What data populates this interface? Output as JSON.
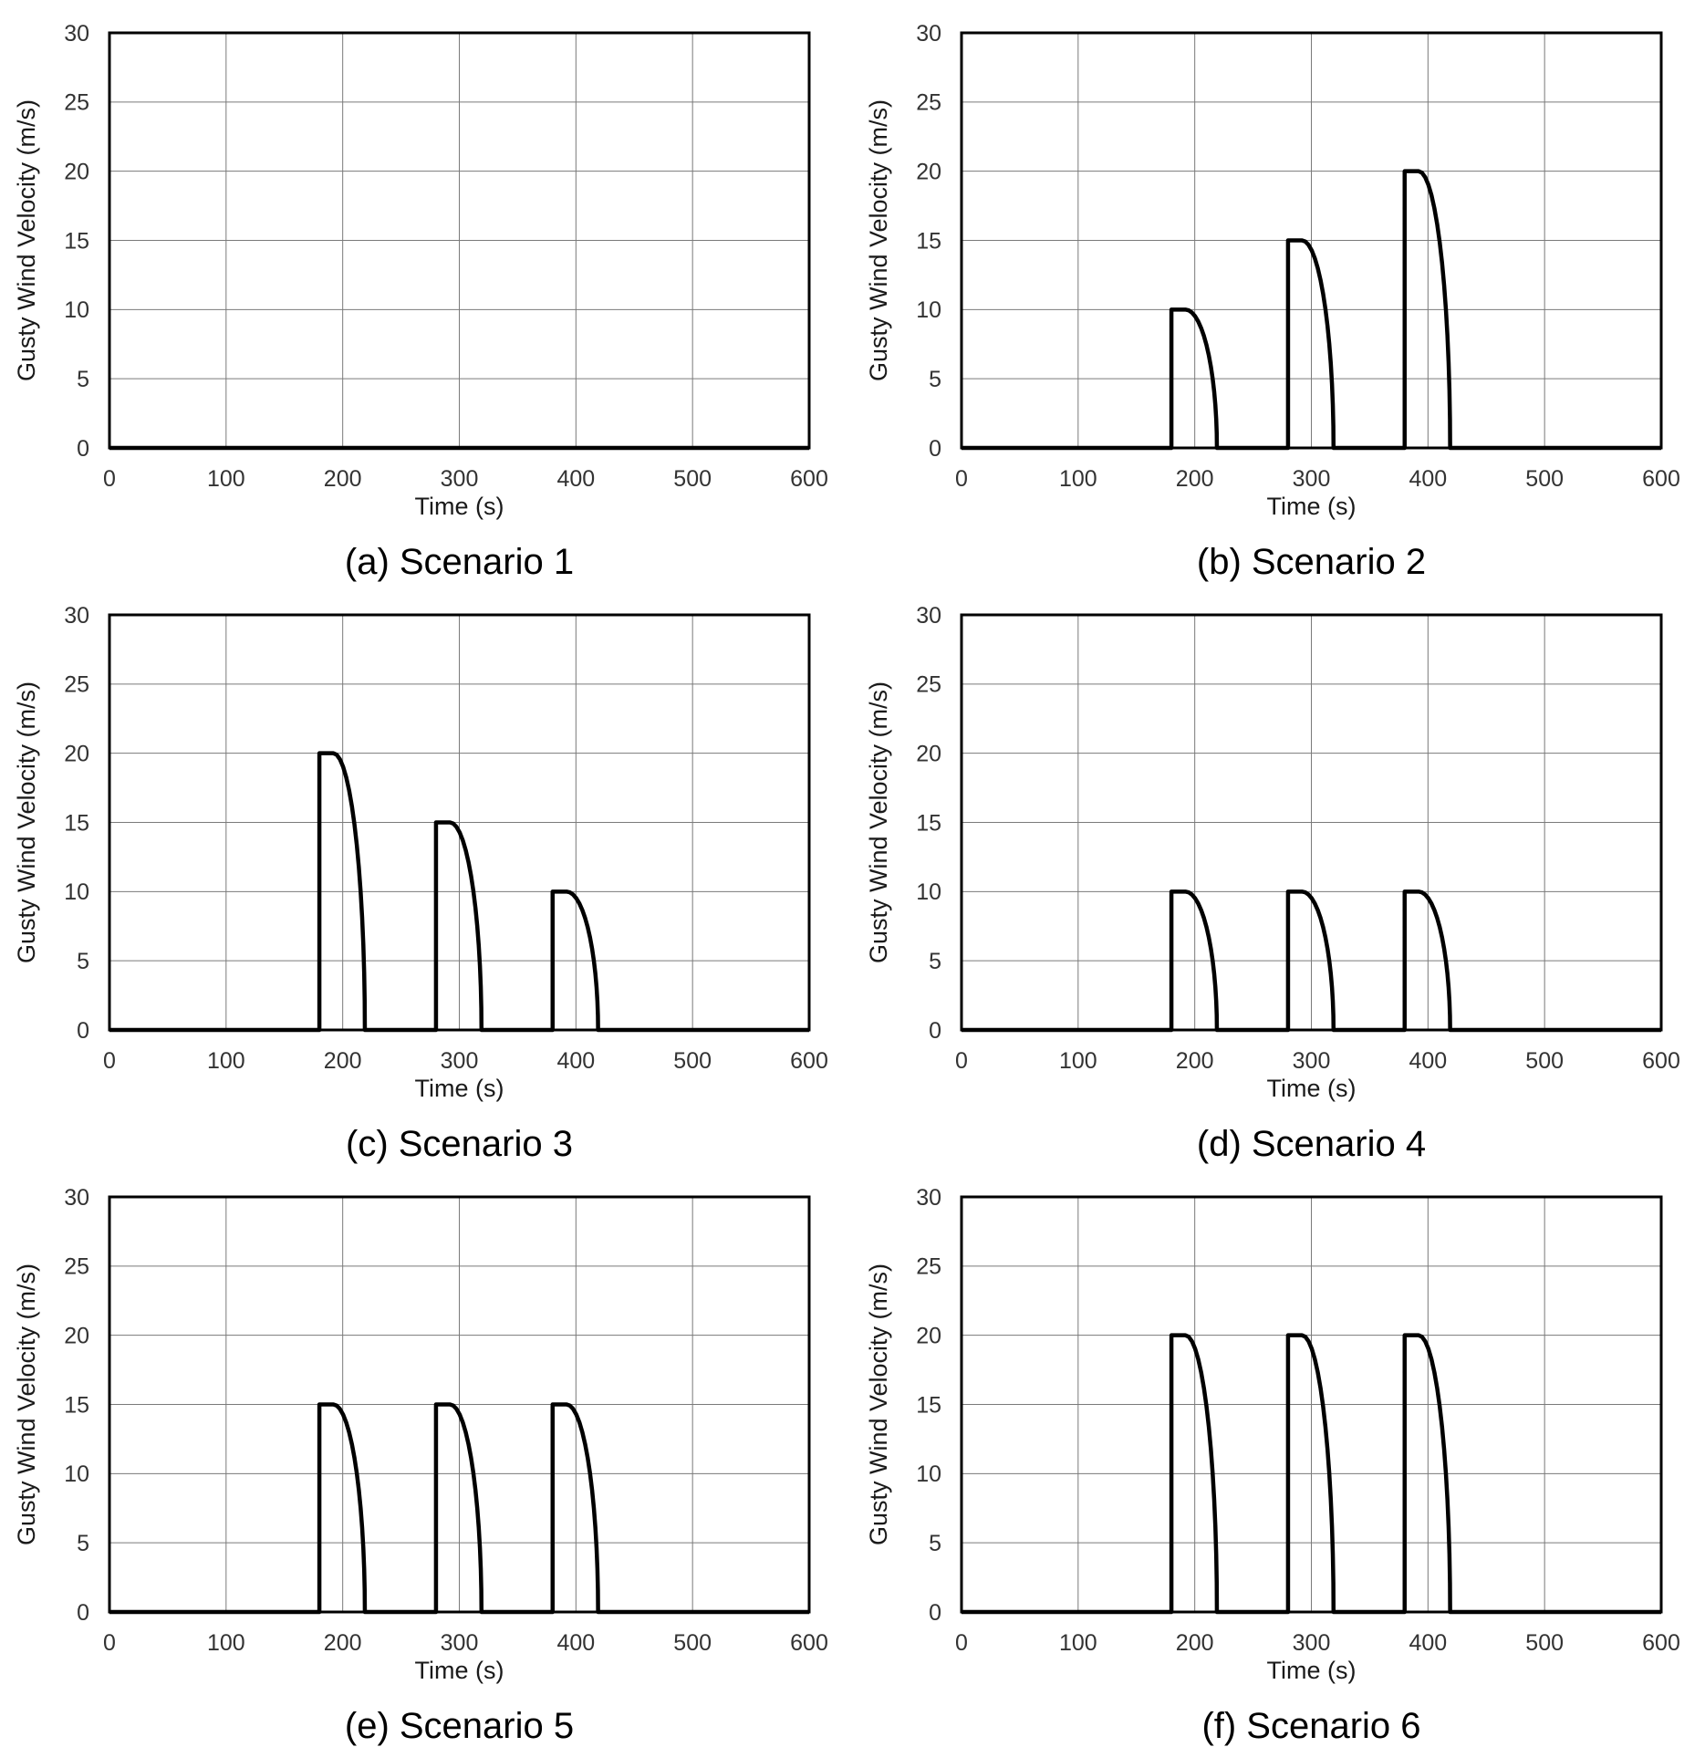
{
  "figure": {
    "background_color": "#ffffff",
    "grid_color": "#7a7a7a",
    "axis_border_color": "#000000",
    "series_line_color": "#000000",
    "tick_label_color": "#333333",
    "caption_color": "#000000"
  },
  "axis": {
    "x_label": "Time (s)",
    "y_label": "Gusty Wind Velocity (m/s)",
    "x_ticks": [
      0,
      100,
      200,
      300,
      400,
      500,
      600
    ],
    "y_ticks": [
      0,
      5,
      10,
      15,
      20,
      25,
      30
    ],
    "x_min": 0,
    "x_max": 600,
    "y_min": 0,
    "y_max": 30
  },
  "gust_shape": {
    "profile": "vertical_rise_hold_quarter_ellipse_decay",
    "hold_s": 12,
    "decay_s": 27,
    "total_s": 39
  },
  "charts": [
    {
      "id": "a",
      "caption": "(a) Scenario 1",
      "gusts": []
    },
    {
      "id": "b",
      "caption": "(b) Scenario 2",
      "gusts": [
        {
          "start": 180,
          "peak": 10
        },
        {
          "start": 280,
          "peak": 15
        },
        {
          "start": 380,
          "peak": 20
        }
      ]
    },
    {
      "id": "c",
      "caption": "(c) Scenario 3",
      "gusts": [
        {
          "start": 180,
          "peak": 20
        },
        {
          "start": 280,
          "peak": 15
        },
        {
          "start": 380,
          "peak": 10
        }
      ]
    },
    {
      "id": "d",
      "caption": "(d) Scenario 4",
      "gusts": [
        {
          "start": 180,
          "peak": 10
        },
        {
          "start": 280,
          "peak": 10
        },
        {
          "start": 380,
          "peak": 10
        }
      ]
    },
    {
      "id": "e",
      "caption": "(e) Scenario 5",
      "gusts": [
        {
          "start": 180,
          "peak": 15
        },
        {
          "start": 280,
          "peak": 15
        },
        {
          "start": 380,
          "peak": 15
        }
      ]
    },
    {
      "id": "f",
      "caption": "(f) Scenario 6",
      "gusts": [
        {
          "start": 180,
          "peak": 20
        },
        {
          "start": 280,
          "peak": 20
        },
        {
          "start": 380,
          "peak": 20
        }
      ]
    }
  ],
  "chart_data": [
    {
      "type": "line",
      "title": "(a) Scenario 1",
      "xlabel": "Time (s)",
      "ylabel": "Gusty Wind Velocity (m/s)",
      "xlim": [
        0,
        600
      ],
      "ylim": [
        0,
        30
      ],
      "x_ticks": [
        0,
        100,
        200,
        300,
        400,
        500,
        600
      ],
      "y_ticks": [
        0,
        5,
        10,
        15,
        20,
        25,
        30
      ],
      "grid": true,
      "legend": "none",
      "series": [
        {
          "name": "gusty wind velocity",
          "points": [
            [
              0,
              0
            ],
            [
              600,
              0
            ]
          ]
        }
      ]
    },
    {
      "type": "line",
      "title": "(b) Scenario 2",
      "xlabel": "Time (s)",
      "ylabel": "Gusty Wind Velocity (m/s)",
      "xlim": [
        0,
        600
      ],
      "ylim": [
        0,
        30
      ],
      "x_ticks": [
        0,
        100,
        200,
        300,
        400,
        500,
        600
      ],
      "y_ticks": [
        0,
        5,
        10,
        15,
        20,
        25,
        30
      ],
      "grid": true,
      "legend": "none",
      "series": [
        {
          "name": "gusty wind velocity",
          "points": [
            [
              0,
              0
            ],
            [
              180,
              0
            ],
            [
              180,
              10
            ],
            [
              192,
              10
            ],
            [
              199,
              9.7
            ],
            [
              205.5,
              8.7
            ],
            [
              211.1,
              7.1
            ],
            [
              215.4,
              5
            ],
            [
              217.7,
              3.1
            ],
            [
              218.7,
              1.6
            ],
            [
              219,
              0
            ],
            [
              280,
              0
            ],
            [
              280,
              15
            ],
            [
              292,
              15
            ],
            [
              299,
              14.5
            ],
            [
              305.5,
              13
            ],
            [
              311.1,
              10.6
            ],
            [
              315.4,
              7.5
            ],
            [
              317.7,
              4.6
            ],
            [
              318.7,
              2.3
            ],
            [
              319,
              0
            ],
            [
              380,
              0
            ],
            [
              380,
              20
            ],
            [
              392,
              20
            ],
            [
              399,
              19.3
            ],
            [
              405.5,
              17.3
            ],
            [
              411.1,
              14.1
            ],
            [
              415.4,
              10
            ],
            [
              417.7,
              6.2
            ],
            [
              418.7,
              3.1
            ],
            [
              419,
              0
            ],
            [
              600,
              0
            ]
          ]
        }
      ]
    },
    {
      "type": "line",
      "title": "(c) Scenario 3",
      "xlabel": "Time (s)",
      "ylabel": "Gusty Wind Velocity (m/s)",
      "xlim": [
        0,
        600
      ],
      "ylim": [
        0,
        30
      ],
      "x_ticks": [
        0,
        100,
        200,
        300,
        400,
        500,
        600
      ],
      "y_ticks": [
        0,
        5,
        10,
        15,
        20,
        25,
        30
      ],
      "grid": true,
      "legend": "none",
      "series": [
        {
          "name": "gusty wind velocity",
          "points": [
            [
              0,
              0
            ],
            [
              180,
              0
            ],
            [
              180,
              20
            ],
            [
              192,
              20
            ],
            [
              199,
              19.3
            ],
            [
              205.5,
              17.3
            ],
            [
              211.1,
              14.1
            ],
            [
              215.4,
              10
            ],
            [
              217.7,
              6.2
            ],
            [
              218.7,
              3.1
            ],
            [
              219,
              0
            ],
            [
              280,
              0
            ],
            [
              280,
              15
            ],
            [
              292,
              15
            ],
            [
              299,
              14.5
            ],
            [
              305.5,
              13
            ],
            [
              311.1,
              10.6
            ],
            [
              315.4,
              7.5
            ],
            [
              317.7,
              4.6
            ],
            [
              318.7,
              2.3
            ],
            [
              319,
              0
            ],
            [
              380,
              0
            ],
            [
              380,
              10
            ],
            [
              392,
              10
            ],
            [
              399,
              9.7
            ],
            [
              405.5,
              8.7
            ],
            [
              411.1,
              7.1
            ],
            [
              415.4,
              5
            ],
            [
              417.7,
              3.1
            ],
            [
              418.7,
              1.6
            ],
            [
              419,
              0
            ],
            [
              600,
              0
            ]
          ]
        }
      ]
    },
    {
      "type": "line",
      "title": "(d) Scenario 4",
      "xlabel": "Time (s)",
      "ylabel": "Gusty Wind Velocity (m/s)",
      "xlim": [
        0,
        600
      ],
      "ylim": [
        0,
        30
      ],
      "x_ticks": [
        0,
        100,
        200,
        300,
        400,
        500,
        600
      ],
      "y_ticks": [
        0,
        5,
        10,
        15,
        20,
        25,
        30
      ],
      "grid": true,
      "legend": "none",
      "series": [
        {
          "name": "gusty wind velocity",
          "points": [
            [
              0,
              0
            ],
            [
              180,
              0
            ],
            [
              180,
              10
            ],
            [
              192,
              10
            ],
            [
              199,
              9.7
            ],
            [
              205.5,
              8.7
            ],
            [
              211.1,
              7.1
            ],
            [
              215.4,
              5
            ],
            [
              217.7,
              3.1
            ],
            [
              218.7,
              1.6
            ],
            [
              219,
              0
            ],
            [
              280,
              0
            ],
            [
              280,
              10
            ],
            [
              292,
              10
            ],
            [
              299,
              9.7
            ],
            [
              305.5,
              8.7
            ],
            [
              311.1,
              7.1
            ],
            [
              315.4,
              5
            ],
            [
              317.7,
              3.1
            ],
            [
              318.7,
              1.6
            ],
            [
              319,
              0
            ],
            [
              380,
              0
            ],
            [
              380,
              10
            ],
            [
              392,
              10
            ],
            [
              399,
              9.7
            ],
            [
              405.5,
              8.7
            ],
            [
              411.1,
              7.1
            ],
            [
              415.4,
              5
            ],
            [
              417.7,
              3.1
            ],
            [
              418.7,
              1.6
            ],
            [
              419,
              0
            ],
            [
              600,
              0
            ]
          ]
        }
      ]
    },
    {
      "type": "line",
      "title": "(e) Scenario 5",
      "xlabel": "Time (s)",
      "ylabel": "Gusty Wind Velocity (m/s)",
      "xlim": [
        0,
        600
      ],
      "ylim": [
        0,
        30
      ],
      "x_ticks": [
        0,
        100,
        200,
        300,
        400,
        500,
        600
      ],
      "y_ticks": [
        0,
        5,
        10,
        15,
        20,
        25,
        30
      ],
      "grid": true,
      "legend": "none",
      "series": [
        {
          "name": "gusty wind velocity",
          "points": [
            [
              0,
              0
            ],
            [
              180,
              0
            ],
            [
              180,
              15
            ],
            [
              192,
              15
            ],
            [
              199,
              14.5
            ],
            [
              205.5,
              13
            ],
            [
              211.1,
              10.6
            ],
            [
              215.4,
              7.5
            ],
            [
              217.7,
              4.6
            ],
            [
              218.7,
              2.3
            ],
            [
              219,
              0
            ],
            [
              280,
              0
            ],
            [
              280,
              15
            ],
            [
              292,
              15
            ],
            [
              299,
              14.5
            ],
            [
              305.5,
              13
            ],
            [
              311.1,
              10.6
            ],
            [
              315.4,
              7.5
            ],
            [
              317.7,
              4.6
            ],
            [
              318.7,
              2.3
            ],
            [
              319,
              0
            ],
            [
              380,
              0
            ],
            [
              380,
              15
            ],
            [
              392,
              15
            ],
            [
              399,
              14.5
            ],
            [
              405.5,
              13
            ],
            [
              411.1,
              10.6
            ],
            [
              415.4,
              7.5
            ],
            [
              417.7,
              4.6
            ],
            [
              418.7,
              2.3
            ],
            [
              419,
              0
            ],
            [
              600,
              0
            ]
          ]
        }
      ]
    },
    {
      "type": "line",
      "title": "(f) Scenario 6",
      "xlabel": "Time (s)",
      "ylabel": "Gusty Wind Velocity (m/s)",
      "xlim": [
        0,
        600
      ],
      "ylim": [
        0,
        30
      ],
      "x_ticks": [
        0,
        100,
        200,
        300,
        400,
        500,
        600
      ],
      "y_ticks": [
        0,
        5,
        10,
        15,
        20,
        25,
        30
      ],
      "grid": true,
      "legend": "none",
      "series": [
        {
          "name": "gusty wind velocity",
          "points": [
            [
              0,
              0
            ],
            [
              180,
              0
            ],
            [
              180,
              20
            ],
            [
              192,
              20
            ],
            [
              199,
              19.3
            ],
            [
              205.5,
              17.3
            ],
            [
              211.1,
              14.1
            ],
            [
              215.4,
              10
            ],
            [
              217.7,
              6.2
            ],
            [
              218.7,
              3.1
            ],
            [
              219,
              0
            ],
            [
              280,
              0
            ],
            [
              280,
              20
            ],
            [
              292,
              20
            ],
            [
              299,
              19.3
            ],
            [
              305.5,
              17.3
            ],
            [
              311.1,
              14.1
            ],
            [
              315.4,
              10
            ],
            [
              317.7,
              6.2
            ],
            [
              318.7,
              3.1
            ],
            [
              319,
              0
            ],
            [
              380,
              0
            ],
            [
              380,
              20
            ],
            [
              392,
              20
            ],
            [
              399,
              19.3
            ],
            [
              405.5,
              17.3
            ],
            [
              411.1,
              14.1
            ],
            [
              415.4,
              10
            ],
            [
              417.7,
              6.2
            ],
            [
              418.7,
              3.1
            ],
            [
              419,
              0
            ],
            [
              600,
              0
            ]
          ]
        }
      ]
    }
  ]
}
